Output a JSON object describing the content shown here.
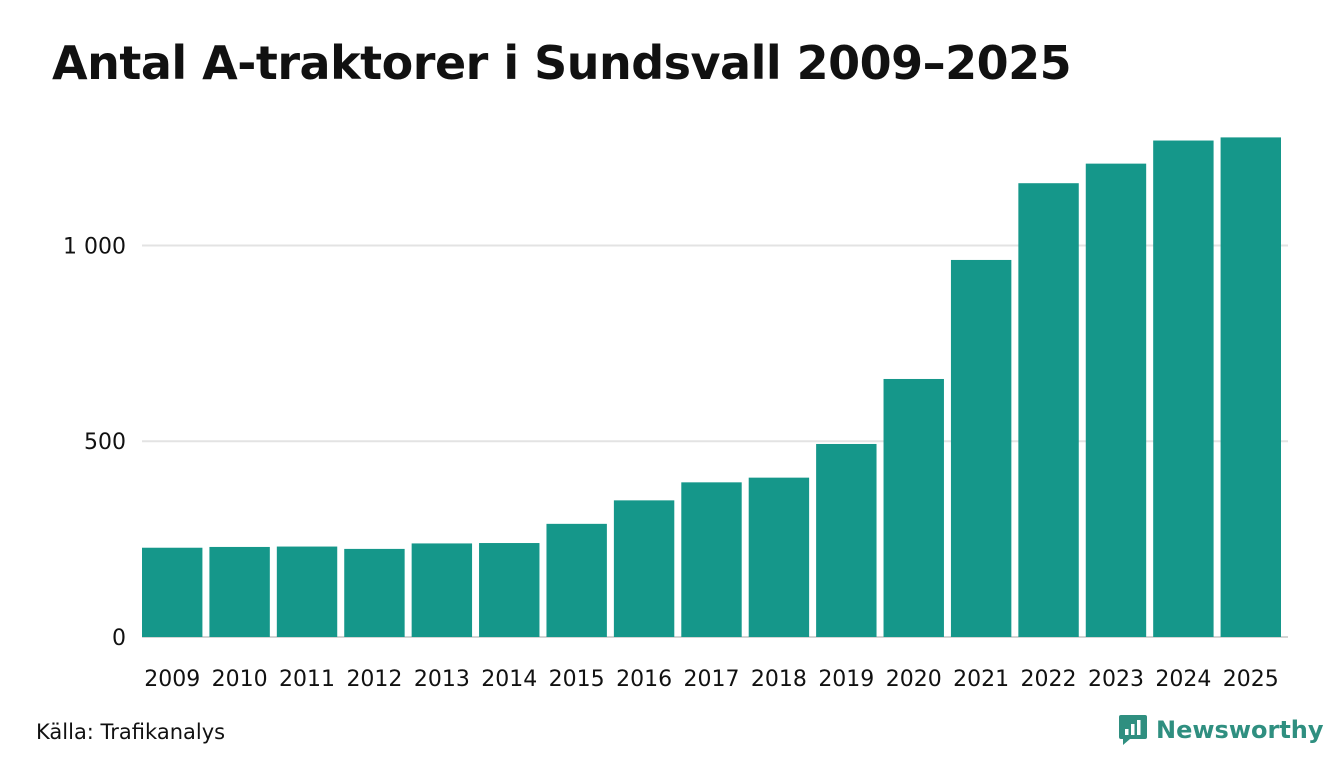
{
  "chart_data": {
    "type": "bar",
    "title": "Antal A-traktorer i Sundsvall 2009–2025",
    "categories": [
      "2009",
      "2010",
      "2011",
      "2012",
      "2013",
      "2014",
      "2015",
      "2016",
      "2017",
      "2018",
      "2019",
      "2020",
      "2021",
      "2022",
      "2023",
      "2024",
      "2025"
    ],
    "values": [
      228,
      230,
      231,
      225,
      239,
      240,
      289,
      349,
      395,
      407,
      493,
      659,
      963,
      1159,
      1209,
      1268,
      1276
    ],
    "ylim": [
      0,
      1300
    ],
    "yticks": [
      0,
      500,
      1000
    ],
    "ytick_labels": [
      "0",
      "500",
      "1 000"
    ],
    "xlabel": "",
    "ylabel": "",
    "grid": true,
    "bar_color": "#15978a"
  },
  "footer": {
    "source": "Källa: Trafikanalys",
    "brand": "Newsworthy",
    "brand_icon": "newsworthy-logo-icon"
  }
}
